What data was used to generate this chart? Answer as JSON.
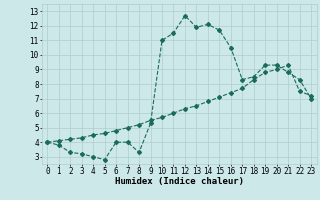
{
  "xlabel": "Humidex (Indice chaleur)",
  "ylabel": "",
  "background_color": "#cce8e8",
  "grid_color": "#b0cccc",
  "line_color": "#1a6b5a",
  "xlim": [
    -0.5,
    23.5
  ],
  "ylim": [
    2.5,
    13.5
  ],
  "x_ticks": [
    0,
    1,
    2,
    3,
    4,
    5,
    6,
    7,
    8,
    9,
    10,
    11,
    12,
    13,
    14,
    15,
    16,
    17,
    18,
    19,
    20,
    21,
    22,
    23
  ],
  "y_ticks": [
    3,
    4,
    5,
    6,
    7,
    8,
    9,
    10,
    11,
    12,
    13
  ],
  "curve1_x": [
    0,
    1,
    2,
    3,
    4,
    5,
    6,
    7,
    8,
    9,
    10,
    11,
    12,
    13,
    14,
    15,
    16,
    17,
    18,
    19,
    20,
    21,
    22,
    23
  ],
  "curve1_y": [
    4.0,
    3.8,
    3.3,
    3.2,
    3.0,
    2.8,
    4.0,
    4.0,
    3.3,
    5.3,
    11.0,
    11.5,
    12.7,
    11.9,
    12.1,
    11.7,
    10.5,
    8.3,
    8.5,
    9.3,
    9.3,
    8.8,
    8.3,
    7.0
  ],
  "curve2_x": [
    0,
    1,
    2,
    3,
    4,
    5,
    6,
    7,
    8,
    9,
    10,
    11,
    12,
    13,
    14,
    15,
    16,
    17,
    18,
    19,
    20,
    21,
    22,
    23
  ],
  "curve2_y": [
    4.0,
    4.1,
    4.2,
    4.3,
    4.5,
    4.6,
    4.8,
    5.0,
    5.2,
    5.5,
    5.7,
    6.0,
    6.3,
    6.5,
    6.8,
    7.1,
    7.4,
    7.7,
    8.3,
    8.8,
    9.0,
    9.3,
    7.5,
    7.2
  ],
  "font_size_label": 6.5,
  "font_size_tick": 5.5,
  "marker_size": 2.0,
  "linewidth": 0.8
}
